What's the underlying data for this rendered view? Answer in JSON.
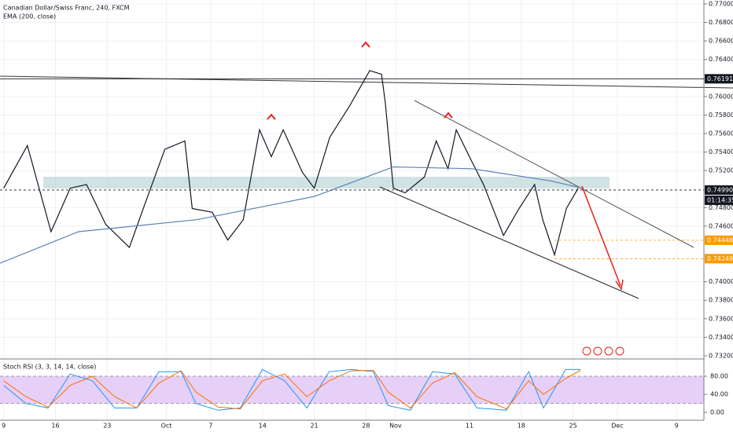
{
  "chart_data": [
    {
      "type": "line",
      "title": "Canadian Dollar/Swiss Franc, 240, FXCM",
      "subtitle": "EMA (200, close)",
      "xlim": [
        -0.5,
        94.7
      ],
      "xticks": [
        {
          "value": 0,
          "label": "9"
        },
        {
          "value": 7,
          "label": "16"
        },
        {
          "value": 14,
          "label": "23"
        },
        {
          "value": 22,
          "label": "Oct"
        },
        {
          "value": 28,
          "label": "7"
        },
        {
          "value": 35,
          "label": "14"
        },
        {
          "value": 42,
          "label": "21"
        },
        {
          "value": 49,
          "label": "28"
        },
        {
          "value": 53,
          "label": "Nov"
        },
        {
          "value": 63,
          "label": "11"
        },
        {
          "value": 70,
          "label": "18"
        },
        {
          "value": 77,
          "label": "25"
        },
        {
          "value": 83,
          "label": "Dec"
        },
        {
          "value": 91,
          "label": "9"
        }
      ],
      "ylim": [
        0.73166,
        0.77042
      ],
      "yticks": [
        {
          "value": 0.77,
          "label": "0.77000"
        },
        {
          "value": 0.768,
          "label": "0.76800"
        },
        {
          "value": 0.766,
          "label": "0.76600"
        },
        {
          "value": 0.764,
          "label": "0.76400"
        },
        {
          "value": 0.76,
          "label": "0.76000"
        },
        {
          "value": 0.758,
          "label": "0.75800"
        },
        {
          "value": 0.756,
          "label": "0.75600"
        },
        {
          "value": 0.754,
          "label": "0.75400"
        },
        {
          "value": 0.752,
          "label": "0.75200"
        },
        {
          "value": 0.748,
          "label": "0.74800"
        },
        {
          "value": 0.746,
          "label": "0.74600"
        },
        {
          "value": 0.74,
          "label": "0.74000"
        },
        {
          "value": 0.738,
          "label": "0.73800"
        },
        {
          "value": 0.736,
          "label": "0.73600"
        },
        {
          "value": 0.734,
          "label": "0.73400"
        },
        {
          "value": 0.732,
          "label": "0.73200"
        }
      ],
      "grid": true,
      "series": [
        {
          "name": "close",
          "color": "#131722",
          "x": [
            0,
            3.2,
            6.4,
            9,
            11.2,
            13.8,
            17,
            19.1,
            21.8,
            24.5,
            25.5,
            28.2,
            30.3,
            32.4,
            34.6,
            36.2,
            37.8,
            40.4,
            42,
            44.1,
            46.8,
            49.5,
            51.1,
            51.6,
            52.7,
            54.3,
            56.9,
            58.5,
            60.1,
            61.2,
            63.3,
            64.9,
            67.6,
            69.7,
            71.8,
            72.9,
            74.5,
            76.1,
            77.7
          ],
          "values": [
            0.7501,
            0.7547,
            0.7454,
            0.7501,
            0.7505,
            0.7462,
            0.7437,
            0.7484,
            0.7543,
            0.7552,
            0.7479,
            0.7475,
            0.7445,
            0.7467,
            0.7564,
            0.7535,
            0.7564,
            0.7518,
            0.7501,
            0.7556,
            0.759,
            0.7628,
            0.7624,
            0.7594,
            0.7501,
            0.7496,
            0.7513,
            0.7552,
            0.7522,
            0.7564,
            0.753,
            0.7505,
            0.745,
            0.7479,
            0.7505,
            0.7467,
            0.7429,
            0.7479,
            0.7501
          ]
        },
        {
          "name": "EMA",
          "color": "#5b7fb8",
          "x": [
            -0.5,
            10.1,
            26.1,
            42,
            52.7,
            63.3,
            73.9,
            77.7
          ],
          "values": [
            0.742,
            0.7454,
            0.7467,
            0.7492,
            0.7524,
            0.7522,
            0.7509,
            0.7502
          ]
        }
      ],
      "price_tags": [
        {
          "value": 0.76191,
          "label": "0.76191",
          "color": "#131722"
        },
        {
          "value": 0.7499,
          "label": "0.74990",
          "color": "#131722"
        },
        {
          "value": 0.74448,
          "label": "0.74448",
          "color": "#ff9800"
        },
        {
          "value": 0.74249,
          "label": "0.74249",
          "color": "#ff9800"
        }
      ],
      "countdown": "01:14:35"
    },
    {
      "type": "line",
      "title": "Stoch RSI (3, 3, 14, 14, close)",
      "ylim": [
        -17,
        113
      ],
      "yticks": [
        {
          "value": 80,
          "label": "80.00"
        },
        {
          "value": 40,
          "label": "40.00"
        },
        {
          "value": 0,
          "label": "0.00"
        }
      ],
      "band": [
        20,
        80
      ],
      "band_color": "#e1c4f5",
      "series": [
        {
          "name": "K",
          "color": "#2196f3",
          "x": [
            0,
            3,
            6,
            9,
            12,
            15,
            18,
            21,
            24,
            26,
            29,
            32,
            35,
            38,
            41,
            44,
            47,
            50,
            52,
            55,
            58,
            61,
            64,
            68,
            71,
            73,
            76,
            78
          ],
          "values": [
            60,
            20,
            10,
            85,
            70,
            10,
            10,
            90,
            90,
            20,
            5,
            10,
            95,
            70,
            10,
            90,
            95,
            90,
            15,
            5,
            90,
            85,
            10,
            5,
            90,
            10,
            95,
            95
          ]
        },
        {
          "name": "D",
          "color": "#ff6d00",
          "x": [
            0,
            3,
            6,
            9,
            12,
            15,
            18,
            21,
            24,
            26,
            29,
            32,
            35,
            38,
            41,
            44,
            47,
            50,
            52,
            55,
            58,
            61,
            64,
            68,
            71,
            73,
            76,
            78
          ],
          "values": [
            70,
            35,
            12,
            60,
            80,
            35,
            10,
            65,
            92,
            45,
            12,
            8,
            70,
            85,
            35,
            70,
            92,
            93,
            45,
            10,
            65,
            88,
            35,
            8,
            70,
            40,
            75,
            93
          ]
        }
      ]
    }
  ]
}
